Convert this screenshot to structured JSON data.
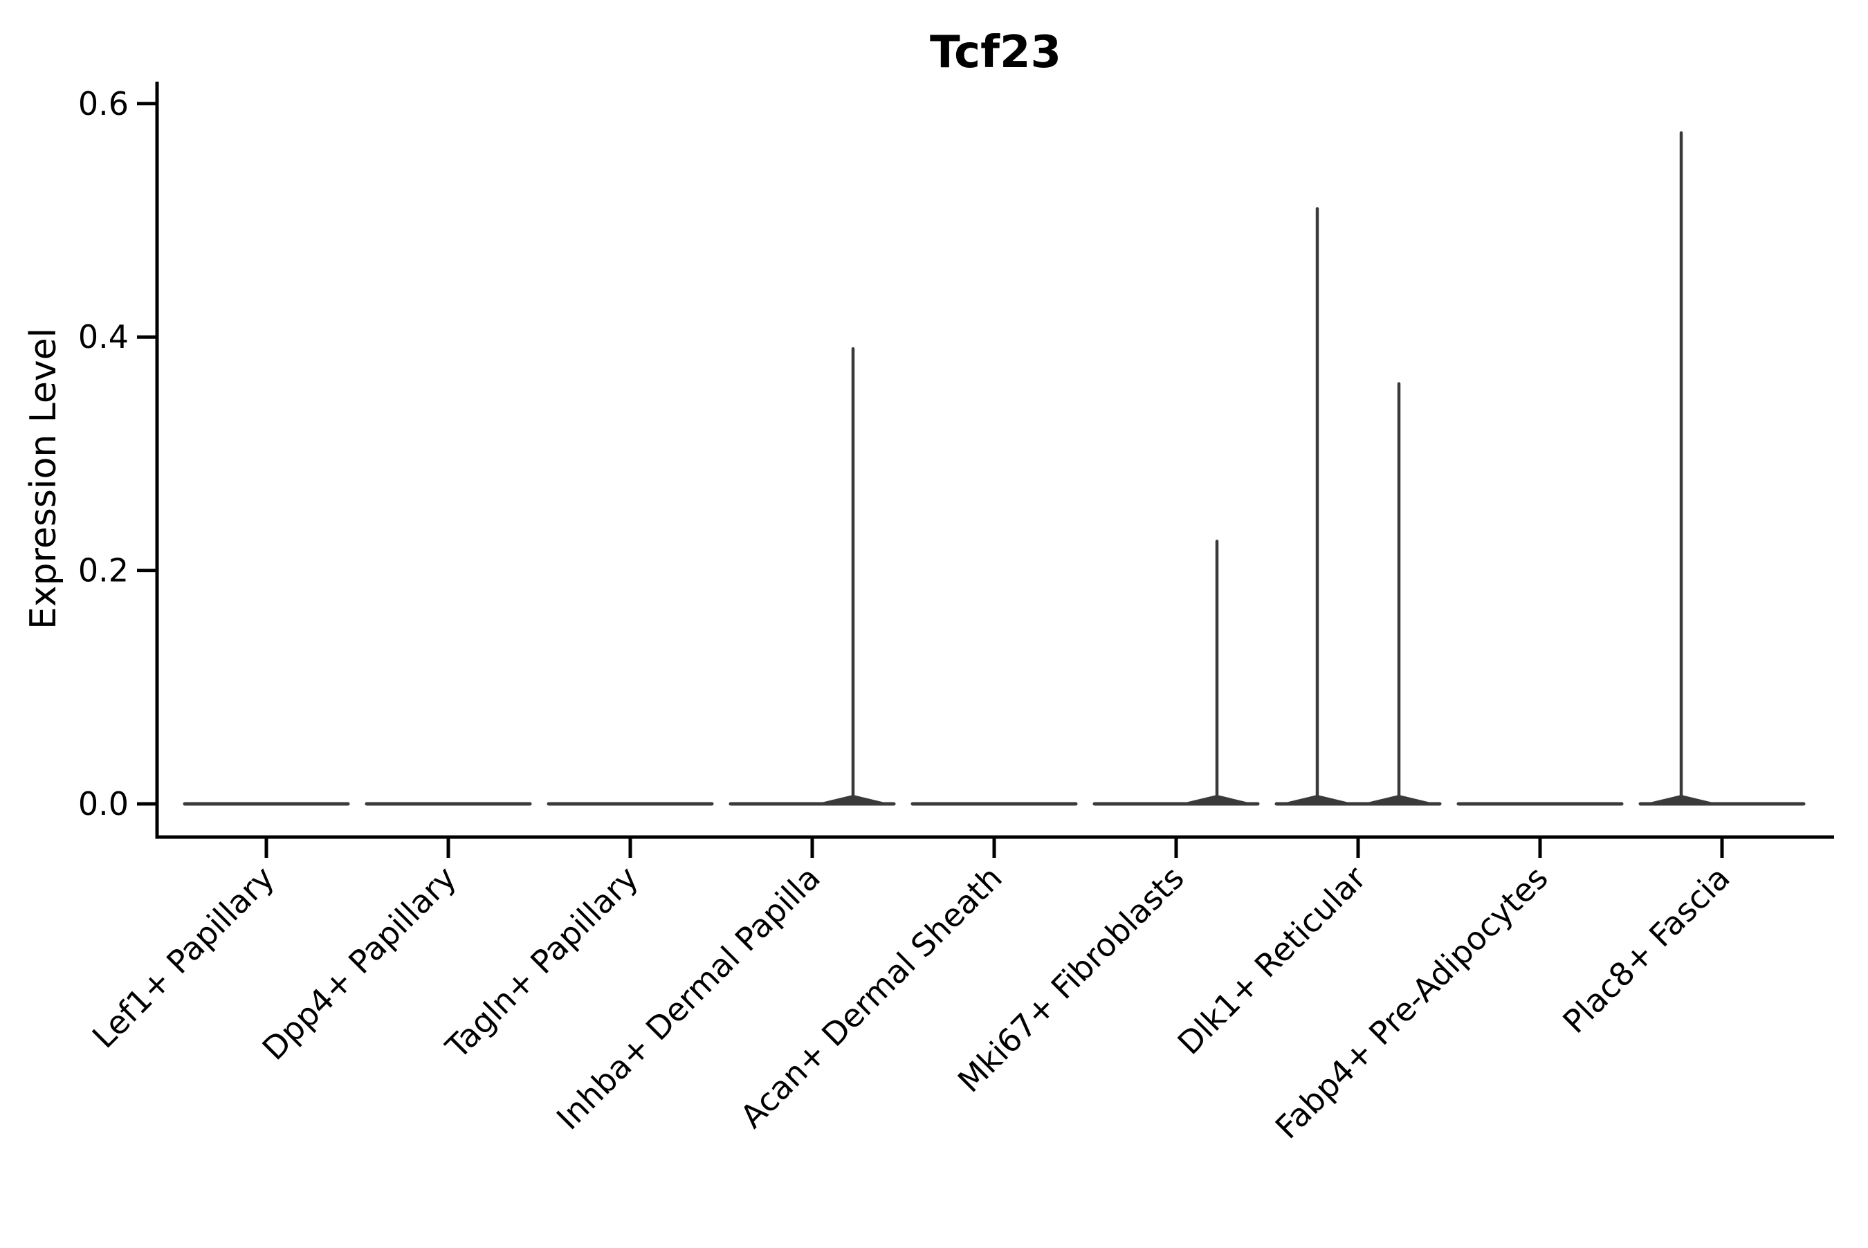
{
  "chart_data": {
    "type": "violin",
    "title": "Tcf23",
    "xlabel": "",
    "ylabel": "Expression Level",
    "categories": [
      "Lef1+ Papillary",
      "Dpp4+ Papillary",
      "Tagln+ Papillary",
      "Inhba+ Dermal Papilla",
      "Acan+ Dermal Sheath",
      "Mki67+ Fibroblasts",
      "Dlk1+ Reticular",
      "Fabp4+ Pre-Adipocytes",
      "Plac8+ Fascia"
    ],
    "ylim": [
      -0.03,
      0.62
    ],
    "ytick_values": [
      0.0,
      0.2,
      0.4,
      0.6
    ],
    "ytick_labels": [
      "0.0",
      "0.2",
      "0.4",
      "0.6"
    ],
    "grid": false,
    "legend_position": "none",
    "violins_per_category": 2,
    "series": [
      {
        "name": "left",
        "max_expression": [
          0,
          0,
          0,
          0,
          0,
          0,
          0.51,
          0,
          0.575
        ]
      },
      {
        "name": "right",
        "max_expression": [
          0,
          0,
          0,
          0.39,
          0,
          0.225,
          0.36,
          0,
          0
        ]
      }
    ],
    "spikes": [
      {
        "category": "Inhba+ Dermal Papilla",
        "side": "right",
        "value": 0.39
      },
      {
        "category": "Mki67+ Fibroblasts",
        "side": "right",
        "value": 0.225
      },
      {
        "category": "Dlk1+ Reticular",
        "side": "left",
        "value": 0.51
      },
      {
        "category": "Dlk1+ Reticular",
        "side": "right",
        "value": 0.36
      },
      {
        "category": "Plac8+ Fascia",
        "side": "left",
        "value": 0.575
      }
    ],
    "colors": {
      "violin": "#3a3a3a",
      "axis": "#000000",
      "text": "#000000",
      "background": "#ffffff"
    }
  }
}
